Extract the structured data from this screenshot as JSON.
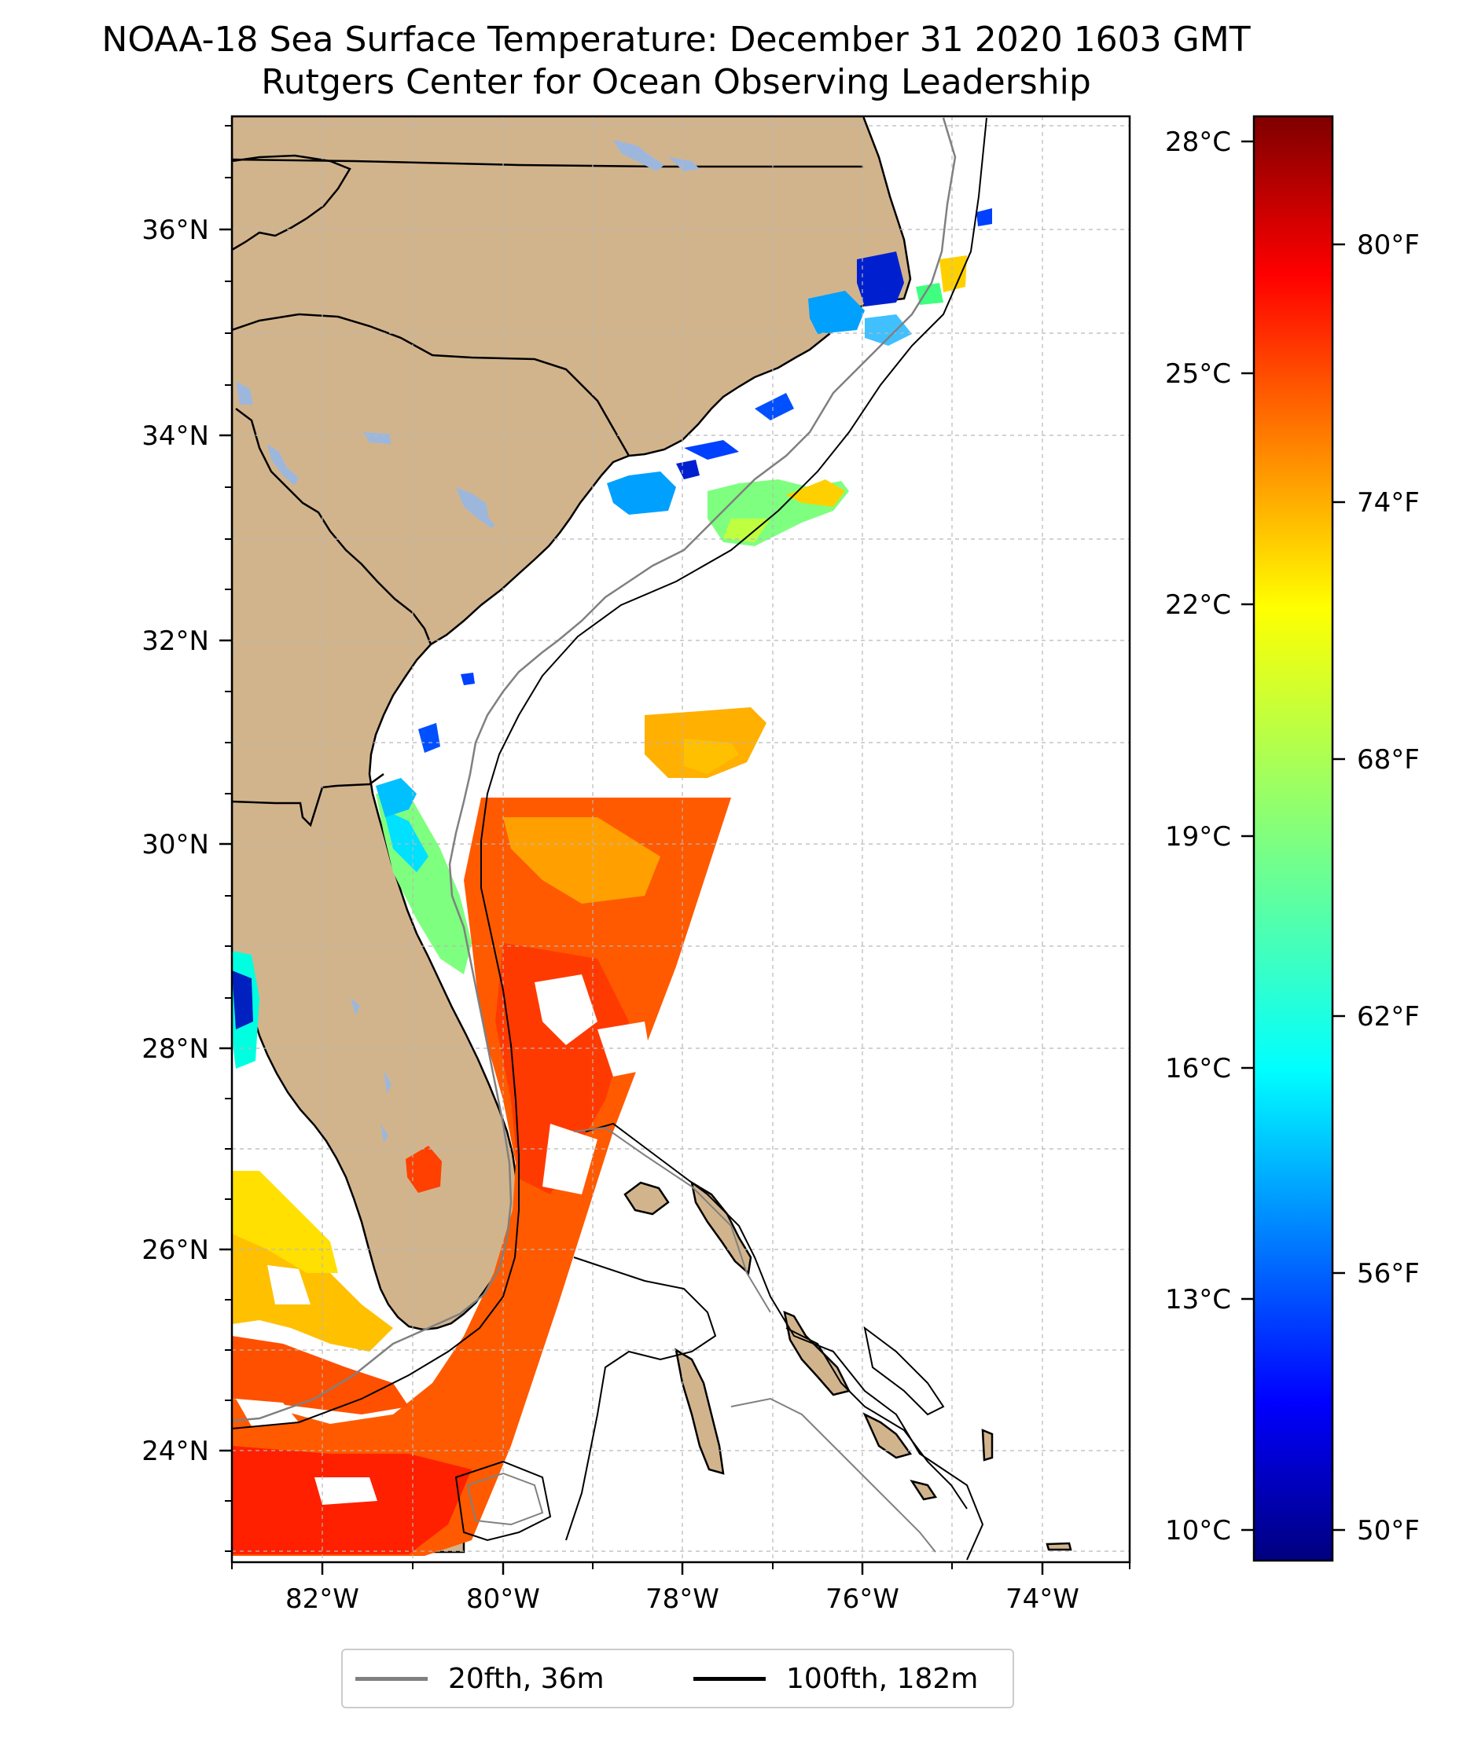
{
  "title_line1": "NOAA-18 Sea Surface Temperature: December 31 2020 1603 GMT",
  "title_line2": "Rutgers Center for Ocean Observing Leadership",
  "map": {
    "lon_range": [
      -83,
      -73
    ],
    "lat_range": [
      23,
      37
    ],
    "lon_ticks": [
      "82°W",
      "80°W",
      "78°W",
      "76°W",
      "74°W"
    ],
    "lat_ticks": [
      "24°N",
      "26°N",
      "28°N",
      "30°N",
      "32°N",
      "34°N",
      "36°N"
    ],
    "land_color": "#d2b48c",
    "lake_color": "#9db7dc"
  },
  "colorbar": {
    "colormap": "jet",
    "celsius_ticks": [
      "10°C",
      "13°C",
      "16°C",
      "19°C",
      "22°C",
      "25°C",
      "28°C"
    ],
    "fahrenheit_ticks": [
      "50°F",
      "56°F",
      "62°F",
      "68°F",
      "74°F",
      "80°F"
    ],
    "range_f": [
      49.5,
      84
    ],
    "colors": [
      "#00007f",
      "#0000ff",
      "#007fff",
      "#00ffff",
      "#7fff7f",
      "#ffff00",
      "#ff7f00",
      "#ff0000",
      "#7f0000"
    ]
  },
  "legend": {
    "items": [
      {
        "label": "20fth, 36m",
        "color": "#808080"
      },
      {
        "label": "100fth, 182m",
        "color": "#000000"
      }
    ]
  }
}
